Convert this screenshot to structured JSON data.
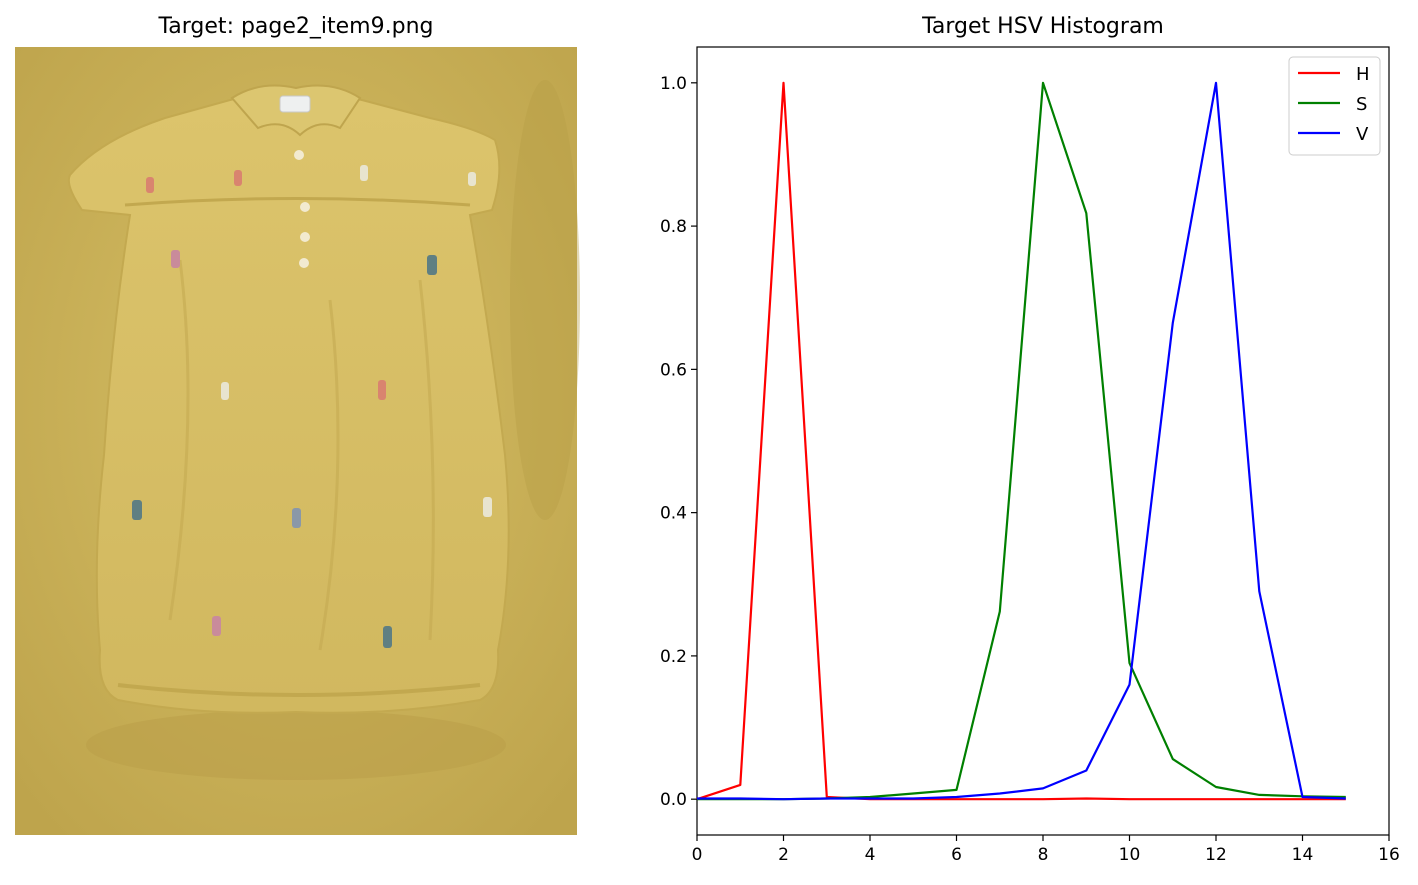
{
  "left_panel": {
    "title": "Target: page2_item9.png",
    "image": {
      "description_icon": "yellow-baby-romper-photo",
      "background_color": "#c9b05a",
      "garment_color": "#d8bf68",
      "shadow_color": "#b9a04a",
      "logo_colors": [
        "#d9846f",
        "#5f7f82",
        "#c98b9b",
        "#e8e4cf"
      ]
    }
  },
  "chart_data": {
    "type": "line",
    "title": "Target HSV Histogram",
    "xlabel": "",
    "ylabel": "",
    "xlim": [
      0,
      16
    ],
    "ylim": [
      -0.05,
      1.05
    ],
    "xticks": [
      "0",
      "2",
      "4",
      "6",
      "8",
      "10",
      "12",
      "14",
      "16"
    ],
    "yticks": [
      "0.0",
      "0.2",
      "0.4",
      "0.6",
      "0.8",
      "1.0"
    ],
    "grid": false,
    "legend_position": "top-right",
    "x": [
      0,
      1,
      2,
      3,
      4,
      5,
      6,
      7,
      8,
      9,
      10,
      11,
      12,
      13,
      14,
      15
    ],
    "series": [
      {
        "name": "H",
        "color": "#ff0000",
        "values": [
          0.0,
          0.02,
          1.0,
          0.003,
          0.0,
          0.0,
          0.0,
          0.0,
          0.0,
          0.001,
          0.0,
          0.0,
          0.0,
          0.0,
          0.0,
          0.0
        ]
      },
      {
        "name": "S",
        "color": "#008000",
        "values": [
          0.0,
          0.0,
          0.0,
          0.001,
          0.003,
          0.008,
          0.013,
          0.262,
          1.0,
          0.818,
          0.19,
          0.056,
          0.017,
          0.006,
          0.004,
          0.003
        ]
      },
      {
        "name": "V",
        "color": "#0000ff",
        "values": [
          0.001,
          0.001,
          0.0,
          0.001,
          0.001,
          0.001,
          0.003,
          0.008,
          0.015,
          0.04,
          0.16,
          0.665,
          1.0,
          0.29,
          0.003,
          0.001
        ]
      }
    ]
  }
}
